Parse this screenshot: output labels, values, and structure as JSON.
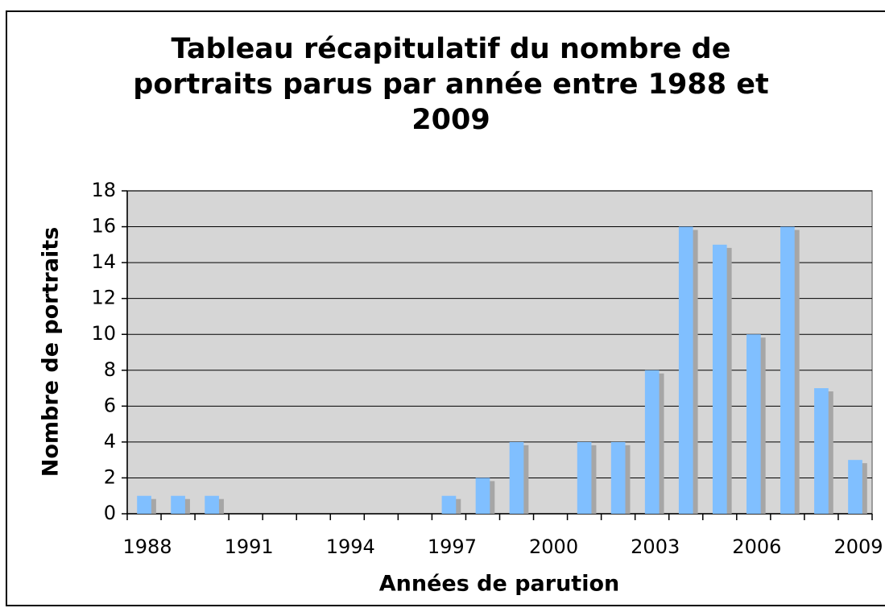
{
  "chart_data": {
    "type": "bar",
    "title": [
      "Tableau récapitulatif du nombre de",
      "portraits parus par année entre 1988 et",
      "2009"
    ],
    "x_label": "Années de parution",
    "y_label": "Nombre de portraits",
    "categories": [
      "1988",
      null,
      null,
      "1991",
      null,
      null,
      "1994",
      null,
      null,
      "1997",
      null,
      null,
      "2000",
      null,
      null,
      "2003",
      null,
      null,
      "2006",
      null,
      null,
      "2009"
    ],
    "values": [
      1,
      1,
      1,
      0,
      0,
      0,
      0,
      0,
      0,
      1,
      2,
      4,
      0,
      4,
      4,
      8,
      16,
      15,
      10,
      16,
      7,
      3
    ],
    "color": "#80bfff",
    "shadow_color": "#a6a6a6",
    "ylim": [
      0,
      18
    ],
    "yticks": [
      0,
      2,
      4,
      6,
      8,
      10,
      12,
      14,
      16,
      18
    ],
    "grid": true
  }
}
